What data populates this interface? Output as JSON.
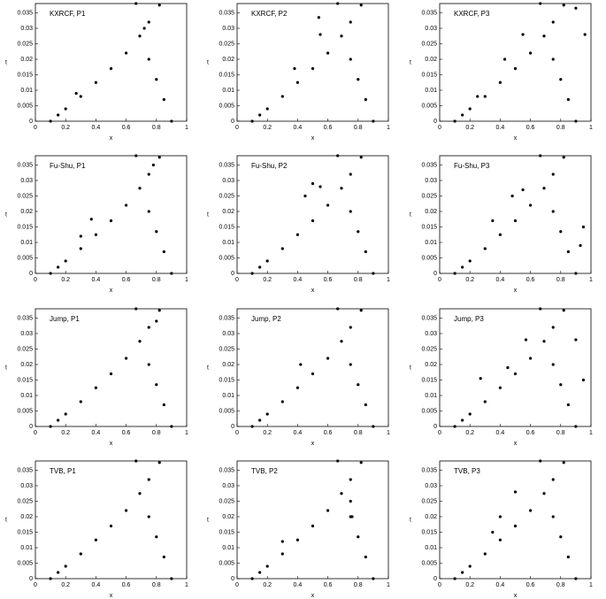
{
  "chart_data": [
    {
      "type": "scatter",
      "title": "KXRCF, P1",
      "xlabel": "x",
      "ylabel": "t",
      "x": [
        0.1,
        0.15,
        0.2,
        0.3,
        0.4,
        0.5,
        0.6,
        0.69,
        0.75,
        0.82,
        0.9,
        0.85,
        0.8,
        0.75,
        0.665,
        0.27,
        0.72
      ],
      "values": [
        0,
        0.002,
        0.004,
        0.008,
        0.0125,
        0.017,
        0.022,
        0.0275,
        0.032,
        0.0375,
        0,
        0.007,
        0.0135,
        0.02,
        0.038,
        0.009,
        0.03
      ],
      "xlim": [
        0,
        1
      ],
      "ylim": [
        0,
        0.038
      ],
      "xticks": [
        0,
        0.2,
        0.4,
        0.6,
        0.8,
        1
      ],
      "yticks": [
        0,
        0.005,
        0.01,
        0.015,
        0.02,
        0.025,
        0.03,
        0.035
      ],
      "color": "#000000"
    },
    {
      "type": "scatter",
      "title": "KXRCF, P2",
      "xlabel": "x",
      "ylabel": "t",
      "x": [
        0.1,
        0.15,
        0.2,
        0.3,
        0.4,
        0.5,
        0.6,
        0.69,
        0.75,
        0.82,
        0.9,
        0.85,
        0.8,
        0.75,
        0.665,
        0.54,
        0.55,
        0.38
      ],
      "values": [
        0,
        0.002,
        0.004,
        0.008,
        0.0125,
        0.017,
        0.022,
        0.0275,
        0.032,
        0.0375,
        0,
        0.007,
        0.0135,
        0.02,
        0.038,
        0.0335,
        0.028,
        0.017
      ],
      "xlim": [
        0,
        1
      ],
      "ylim": [
        0,
        0.038
      ],
      "xticks": [
        0,
        0.2,
        0.4,
        0.6,
        0.8,
        1
      ],
      "yticks": [
        0,
        0.005,
        0.01,
        0.015,
        0.02,
        0.025,
        0.03,
        0.035
      ],
      "color": "#000000"
    },
    {
      "type": "scatter",
      "title": "KXRCF, P3",
      "xlabel": "x",
      "ylabel": "t",
      "x": [
        0.1,
        0.15,
        0.2,
        0.3,
        0.4,
        0.5,
        0.6,
        0.69,
        0.75,
        0.82,
        0.9,
        0.85,
        0.8,
        0.75,
        0.665,
        0.43,
        0.55,
        0.96,
        0.9,
        0.25
      ],
      "values": [
        0,
        0.002,
        0.004,
        0.008,
        0.0125,
        0.017,
        0.022,
        0.0275,
        0.032,
        0.0375,
        0,
        0.007,
        0.0135,
        0.02,
        0.038,
        0.02,
        0.028,
        0.028,
        0.0365,
        0.008
      ],
      "xlim": [
        0,
        1
      ],
      "ylim": [
        0,
        0.038
      ],
      "xticks": [
        0,
        0.2,
        0.4,
        0.6,
        0.8,
        1
      ],
      "yticks": [
        0,
        0.005,
        0.01,
        0.015,
        0.02,
        0.025,
        0.03,
        0.035
      ],
      "color": "#000000"
    },
    {
      "type": "scatter",
      "title": "Fu-Shu, P1",
      "xlabel": "x",
      "ylabel": "t",
      "x": [
        0.1,
        0.15,
        0.2,
        0.3,
        0.4,
        0.5,
        0.6,
        0.69,
        0.75,
        0.82,
        0.9,
        0.85,
        0.8,
        0.75,
        0.665,
        0.37,
        0.3,
        0.78
      ],
      "values": [
        0,
        0.002,
        0.004,
        0.008,
        0.0125,
        0.017,
        0.022,
        0.0275,
        0.032,
        0.0375,
        0,
        0.007,
        0.0135,
        0.02,
        0.038,
        0.0175,
        0.012,
        0.035
      ],
      "xlim": [
        0,
        1
      ],
      "ylim": [
        0,
        0.038
      ],
      "xticks": [
        0,
        0.2,
        0.4,
        0.6,
        0.8,
        1
      ],
      "yticks": [
        0,
        0.005,
        0.01,
        0.015,
        0.02,
        0.025,
        0.03,
        0.035
      ],
      "color": "#000000"
    },
    {
      "type": "scatter",
      "title": "Fu-Shu, P2",
      "xlabel": "x",
      "ylabel": "t",
      "x": [
        0.1,
        0.15,
        0.2,
        0.3,
        0.4,
        0.5,
        0.6,
        0.69,
        0.75,
        0.82,
        0.9,
        0.85,
        0.8,
        0.75,
        0.665,
        0.45,
        0.5,
        0.55
      ],
      "values": [
        0,
        0.002,
        0.004,
        0.008,
        0.0125,
        0.017,
        0.022,
        0.0275,
        0.032,
        0.0375,
        0,
        0.007,
        0.0135,
        0.02,
        0.038,
        0.025,
        0.029,
        0.028
      ],
      "xlim": [
        0,
        1
      ],
      "ylim": [
        0,
        0.038
      ],
      "xticks": [
        0,
        0.2,
        0.4,
        0.6,
        0.8,
        1
      ],
      "yticks": [
        0,
        0.005,
        0.01,
        0.015,
        0.02,
        0.025,
        0.03,
        0.035
      ],
      "color": "#000000"
    },
    {
      "type": "scatter",
      "title": "Fu-Shu, P3",
      "xlabel": "x",
      "ylabel": "t",
      "x": [
        0.1,
        0.15,
        0.2,
        0.3,
        0.4,
        0.5,
        0.6,
        0.69,
        0.75,
        0.82,
        0.9,
        0.85,
        0.8,
        0.75,
        0.665,
        0.35,
        0.48,
        0.95,
        0.93,
        0.55
      ],
      "values": [
        0,
        0.002,
        0.004,
        0.008,
        0.0125,
        0.017,
        0.022,
        0.0275,
        0.032,
        0.0375,
        0,
        0.007,
        0.0135,
        0.02,
        0.038,
        0.017,
        0.025,
        0.015,
        0.009,
        0.027
      ],
      "xlim": [
        0,
        1
      ],
      "ylim": [
        0,
        0.038
      ],
      "xticks": [
        0,
        0.2,
        0.4,
        0.6,
        0.8,
        1
      ],
      "yticks": [
        0,
        0.005,
        0.01,
        0.015,
        0.02,
        0.025,
        0.03,
        0.035
      ],
      "color": "#000000"
    },
    {
      "type": "scatter",
      "title": "Jump, P1",
      "xlabel": "x",
      "ylabel": "t",
      "x": [
        0.1,
        0.15,
        0.2,
        0.3,
        0.4,
        0.5,
        0.6,
        0.69,
        0.75,
        0.82,
        0.9,
        0.85,
        0.8,
        0.75,
        0.665,
        0.8
      ],
      "values": [
        0,
        0.002,
        0.004,
        0.008,
        0.0125,
        0.017,
        0.022,
        0.0275,
        0.032,
        0.0375,
        0,
        0.007,
        0.0135,
        0.02,
        0.038,
        0.034
      ],
      "xlim": [
        0,
        1
      ],
      "ylim": [
        0,
        0.038
      ],
      "xticks": [
        0,
        0.2,
        0.4,
        0.6,
        0.8,
        1
      ],
      "yticks": [
        0,
        0.005,
        0.01,
        0.015,
        0.02,
        0.025,
        0.03,
        0.035
      ],
      "color": "#000000"
    },
    {
      "type": "scatter",
      "title": "Jump, P2",
      "xlabel": "x",
      "ylabel": "t",
      "x": [
        0.1,
        0.15,
        0.2,
        0.3,
        0.4,
        0.5,
        0.6,
        0.69,
        0.75,
        0.82,
        0.9,
        0.85,
        0.8,
        0.75,
        0.665,
        0.42
      ],
      "values": [
        0,
        0.002,
        0.004,
        0.008,
        0.0125,
        0.017,
        0.022,
        0.0275,
        0.032,
        0.0375,
        0,
        0.007,
        0.0135,
        0.02,
        0.038,
        0.02
      ],
      "xlim": [
        0,
        1
      ],
      "ylim": [
        0,
        0.038
      ],
      "xticks": [
        0,
        0.2,
        0.4,
        0.6,
        0.8,
        1
      ],
      "yticks": [
        0,
        0.005,
        0.01,
        0.015,
        0.02,
        0.025,
        0.03,
        0.035
      ],
      "color": "#000000"
    },
    {
      "type": "scatter",
      "title": "Jump, P3",
      "xlabel": "x",
      "ylabel": "t",
      "x": [
        0.1,
        0.15,
        0.2,
        0.3,
        0.4,
        0.5,
        0.6,
        0.69,
        0.75,
        0.82,
        0.9,
        0.85,
        0.8,
        0.75,
        0.665,
        0.45,
        0.57,
        0.9,
        0.95,
        0.27
      ],
      "values": [
        0,
        0.002,
        0.004,
        0.008,
        0.0125,
        0.017,
        0.022,
        0.0275,
        0.032,
        0.0375,
        0,
        0.007,
        0.0135,
        0.02,
        0.038,
        0.019,
        0.028,
        0.028,
        0.015,
        0.0155
      ],
      "xlim": [
        0,
        1
      ],
      "ylim": [
        0,
        0.038
      ],
      "xticks": [
        0,
        0.2,
        0.4,
        0.6,
        0.8,
        1
      ],
      "yticks": [
        0,
        0.005,
        0.01,
        0.015,
        0.02,
        0.025,
        0.03,
        0.035
      ],
      "color": "#000000"
    },
    {
      "type": "scatter",
      "title": "TVB, P1",
      "xlabel": "x",
      "ylabel": "t",
      "x": [
        0.1,
        0.15,
        0.2,
        0.3,
        0.4,
        0.5,
        0.6,
        0.69,
        0.75,
        0.82,
        0.9,
        0.85,
        0.8,
        0.75,
        0.665
      ],
      "values": [
        0,
        0.002,
        0.004,
        0.008,
        0.0125,
        0.017,
        0.022,
        0.0275,
        0.032,
        0.0375,
        0,
        0.007,
        0.0135,
        0.02,
        0.038
      ],
      "xlim": [
        0,
        1
      ],
      "ylim": [
        0,
        0.038
      ],
      "xticks": [
        0,
        0.2,
        0.4,
        0.6,
        0.8,
        1
      ],
      "yticks": [
        0,
        0.005,
        0.01,
        0.015,
        0.02,
        0.025,
        0.03,
        0.035
      ],
      "color": "#000000"
    },
    {
      "type": "scatter",
      "title": "TVB, P2",
      "xlabel": "x",
      "ylabel": "t",
      "x": [
        0.1,
        0.15,
        0.2,
        0.3,
        0.4,
        0.5,
        0.6,
        0.69,
        0.75,
        0.82,
        0.9,
        0.85,
        0.8,
        0.75,
        0.665,
        0.3,
        0.75,
        0.76
      ],
      "values": [
        0,
        0.002,
        0.004,
        0.008,
        0.0125,
        0.017,
        0.022,
        0.0275,
        0.032,
        0.0375,
        0,
        0.007,
        0.0135,
        0.02,
        0.038,
        0.012,
        0.025,
        0.02
      ],
      "xlim": [
        0,
        1
      ],
      "ylim": [
        0,
        0.038
      ],
      "xticks": [
        0,
        0.2,
        0.4,
        0.6,
        0.8,
        1
      ],
      "yticks": [
        0,
        0.005,
        0.01,
        0.015,
        0.02,
        0.025,
        0.03,
        0.035
      ],
      "color": "#000000"
    },
    {
      "type": "scatter",
      "title": "TVB, P3",
      "xlabel": "x",
      "ylabel": "t",
      "x": [
        0.1,
        0.15,
        0.2,
        0.3,
        0.4,
        0.5,
        0.6,
        0.69,
        0.75,
        0.82,
        0.9,
        0.85,
        0.8,
        0.75,
        0.665,
        0.35,
        0.5,
        0.4
      ],
      "values": [
        0,
        0.002,
        0.004,
        0.008,
        0.0125,
        0.017,
        0.022,
        0.0275,
        0.032,
        0.0375,
        0,
        0.007,
        0.0135,
        0.02,
        0.038,
        0.015,
        0.028,
        0.02
      ],
      "xlim": [
        0,
        1
      ],
      "ylim": [
        0,
        0.038
      ],
      "xticks": [
        0,
        0.2,
        0.4,
        0.6,
        0.8,
        1
      ],
      "yticks": [
        0,
        0.005,
        0.01,
        0.015,
        0.02,
        0.025,
        0.03,
        0.035
      ],
      "color": "#000000"
    }
  ]
}
